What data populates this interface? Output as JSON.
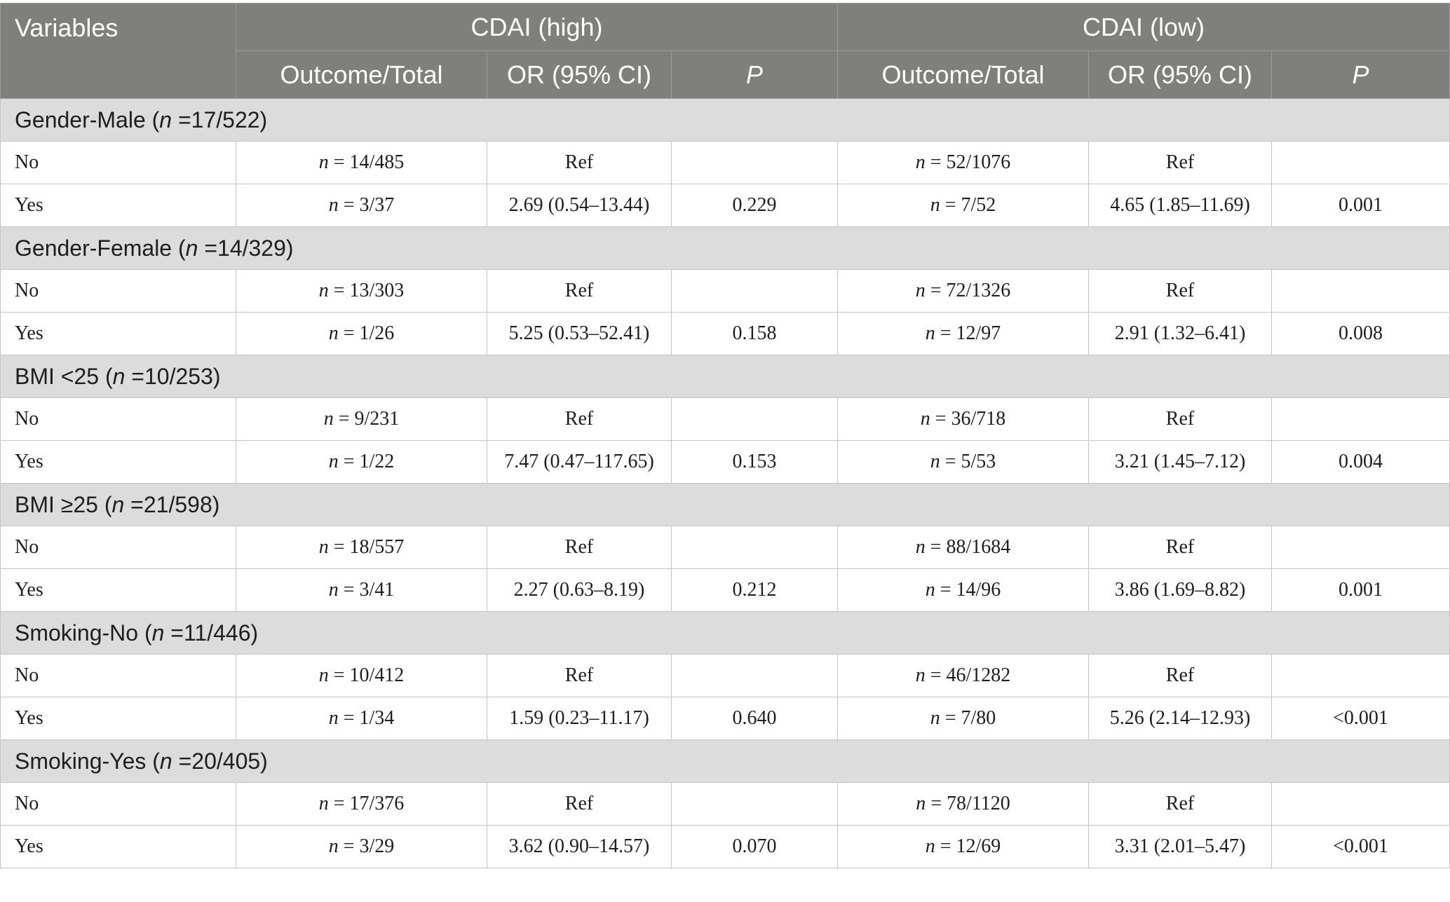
{
  "header": {
    "variables": "Variables",
    "groups": [
      "CDAI (high)",
      "CDAI (low)"
    ],
    "sub": [
      "Outcome/Total",
      "OR (95% CI)",
      "P",
      "Outcome/Total",
      "OR (95% CI)",
      "P"
    ]
  },
  "sections": [
    {
      "pre": "Gender-Male (",
      "n": "n",
      "post": " =17/522)",
      "rows": [
        {
          "label": "No",
          "ht": "= 14/485",
          "hor": "Ref",
          "hp": "",
          "lt": "= 52/1076",
          "lor": "Ref",
          "lp": ""
        },
        {
          "label": "Yes",
          "ht": "= 3/37",
          "hor": "2.69 (0.54–13.44)",
          "hp": "0.229",
          "lt": "= 7/52",
          "lor": "4.65 (1.85–11.69)",
          "lp": "0.001"
        }
      ]
    },
    {
      "pre": "Gender-Female (",
      "n": "n",
      "post": " =14/329)",
      "rows": [
        {
          "label": "No",
          "ht": "= 13/303",
          "hor": "Ref",
          "hp": "",
          "lt": "= 72/1326",
          "lor": "Ref",
          "lp": ""
        },
        {
          "label": "Yes",
          "ht": "= 1/26",
          "hor": "5.25 (0.53–52.41)",
          "hp": "0.158",
          "lt": "= 12/97",
          "lor": "2.91 (1.32–6.41)",
          "lp": "0.008"
        }
      ]
    },
    {
      "pre": "BMI <25 (",
      "n": "n",
      "post": " =10/253)",
      "rows": [
        {
          "label": "No",
          "ht": "= 9/231",
          "hor": "Ref",
          "hp": "",
          "lt": "= 36/718",
          "lor": "Ref",
          "lp": ""
        },
        {
          "label": "Yes",
          "ht": "= 1/22",
          "hor": "7.47 (0.47–117.65)",
          "hp": "0.153",
          "lt": "= 5/53",
          "lor": "3.21 (1.45–7.12)",
          "lp": "0.004"
        }
      ]
    },
    {
      "pre": "BMI ≥25 (",
      "n": "n",
      "post": " =21/598)",
      "rows": [
        {
          "label": "No",
          "ht": "= 18/557",
          "hor": "Ref",
          "hp": "",
          "lt": "= 88/1684",
          "lor": "Ref",
          "lp": ""
        },
        {
          "label": "Yes",
          "ht": "= 3/41",
          "hor": "2.27 (0.63–8.19)",
          "hp": "0.212",
          "lt": "= 14/96",
          "lor": "3.86 (1.69–8.82)",
          "lp": "0.001"
        }
      ]
    },
    {
      "pre": "Smoking-No (",
      "n": "n",
      "post": " =11/446)",
      "rows": [
        {
          "label": "No",
          "ht": "= 10/412",
          "hor": "Ref",
          "hp": "",
          "lt": "= 46/1282",
          "lor": "Ref",
          "lp": ""
        },
        {
          "label": "Yes",
          "ht": "= 1/34",
          "hor": "1.59 (0.23–11.17)",
          "hp": "0.640",
          "lt": "= 7/80",
          "lor": "5.26 (2.14–12.93)",
          "lp": "<0.001"
        }
      ]
    },
    {
      "pre": "Smoking-Yes (",
      "n": "n",
      "post": " =20/405)",
      "rows": [
        {
          "label": "No",
          "ht": "= 17/376",
          "hor": "Ref",
          "hp": "",
          "lt": "= 78/1120",
          "lor": "Ref",
          "lp": ""
        },
        {
          "label": "Yes",
          "ht": "= 3/29",
          "hor": "3.62 (0.90–14.57)",
          "hp": "0.070",
          "lt": "= 12/69",
          "lor": "3.31 (2.01–5.47)",
          "lp": "<0.001"
        }
      ]
    }
  ]
}
